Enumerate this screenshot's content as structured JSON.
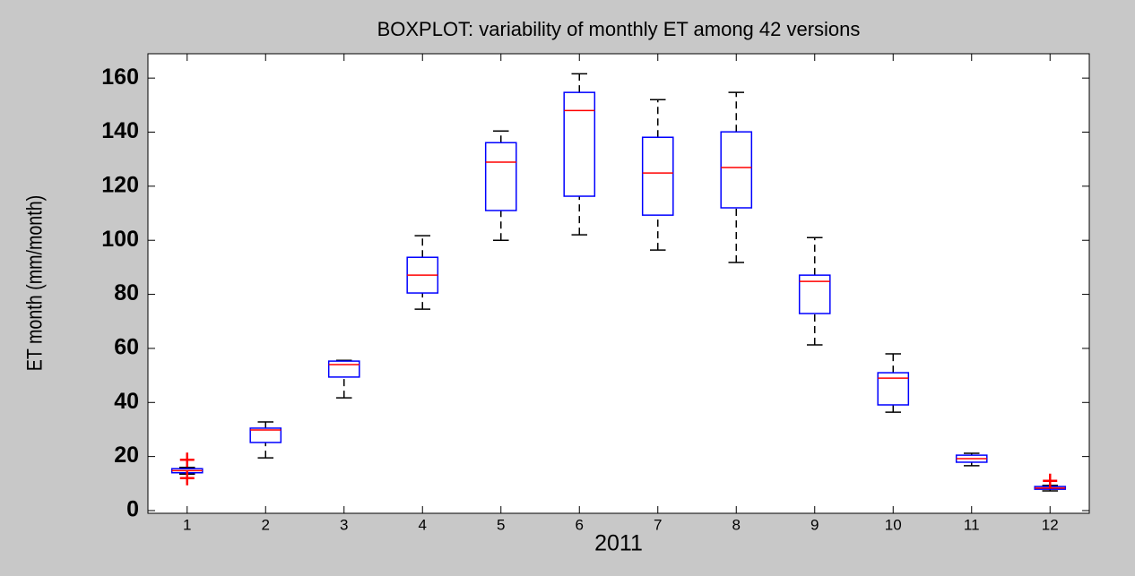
{
  "chart_data": {
    "type": "box",
    "title": "BOXPLOT: variability of monthly ET among 42 versions",
    "xlabel": "2011",
    "ylabel": "ET month (mm/month)",
    "categories": [
      "1",
      "2",
      "3",
      "4",
      "5",
      "6",
      "7",
      "8",
      "9",
      "10",
      "11",
      "12"
    ],
    "whisker_low": [
      13.5,
      19.5,
      41.7,
      74.5,
      100,
      102,
      96.4,
      91.8,
      61.3,
      36.4,
      16.6,
      7.3
    ],
    "q1": [
      14,
      25.2,
      49.4,
      80.5,
      111,
      116.3,
      109.3,
      112,
      72.9,
      39.1,
      17.9,
      7.9
    ],
    "median": [
      14.8,
      29.8,
      54,
      87.1,
      128.9,
      148,
      124.9,
      126.9,
      84.8,
      49,
      19.2,
      8.3
    ],
    "q3": [
      15.5,
      30.5,
      55.3,
      93.7,
      136.1,
      154.7,
      138.1,
      140.1,
      87.1,
      51,
      20.5,
      8.9
    ],
    "whisker_high": [
      16,
      32.8,
      55.6,
      101.7,
      140.4,
      161.6,
      152,
      154.7,
      101,
      58,
      21.2,
      9.3
    ],
    "outliers": [
      [
        12,
        18.8
      ],
      [],
      [],
      [],
      [],
      [],
      [],
      [],
      [],
      [],
      [],
      [
        11
      ]
    ],
    "box_color": "#0000ff",
    "median_color": "#ff0000",
    "whisker_color": "#000000",
    "outlier_color": "#ff0000",
    "ylim": [
      -1,
      169
    ],
    "yticks": [
      0,
      20,
      40,
      60,
      80,
      100,
      120,
      140,
      160
    ]
  }
}
